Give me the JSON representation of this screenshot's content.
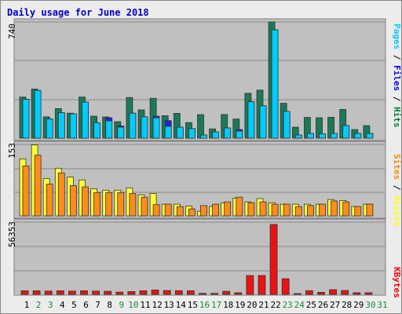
{
  "chart_data": {
    "type": "bar",
    "title": "Daily usage for June 2018",
    "categories": [
      "1",
      "2",
      "3",
      "4",
      "5",
      "6",
      "7",
      "8",
      "9",
      "10",
      "11",
      "12",
      "13",
      "14",
      "15",
      "16",
      "17",
      "18",
      "19",
      "20",
      "21",
      "22",
      "23",
      "24",
      "25",
      "26",
      "27",
      "28",
      "29",
      "30",
      "31"
    ],
    "weekend_days": [
      "2",
      "3",
      "9",
      "10",
      "16",
      "17",
      "23",
      "24",
      "30",
      "31"
    ],
    "panels": [
      {
        "id": "top",
        "max_label": "740",
        "ylim": [
          0,
          740
        ],
        "legend": [
          {
            "text": "Pages",
            "color": "#00ccff"
          },
          {
            "text": " / ",
            "color": "#000000"
          },
          {
            "text": "Files",
            "color": "#0000ff"
          },
          {
            "text": " / ",
            "color": "#000000"
          },
          {
            "text": "Hits",
            "color": "#008040"
          }
        ],
        "series": [
          {
            "name": "Hits",
            "color": "#1b7a55",
            "values": [
              262,
              313,
              136,
              188,
              159,
              262,
              140,
              135,
              105,
              259,
              180,
              254,
              143,
              158,
              99,
              150,
              59,
              151,
              122,
              286,
              306,
              740,
              222,
              70,
              132,
              130,
              133,
              183,
              55,
              80,
              0
            ]
          },
          {
            "name": "Files",
            "color": "#2222dd",
            "values": [
              247,
              304,
              122,
              162,
              155,
              230,
              98,
              130,
              78,
              159,
              136,
              140,
              112,
              70,
              61,
              20,
              40,
              65,
              55,
              232,
              206,
              690,
              170,
              20,
              30,
              28,
              30,
              80,
              30,
              30,
              0
            ]
          },
          {
            "name": "Pages",
            "color": "#00ccff",
            "values": [
              247,
              304,
              122,
              162,
              155,
              230,
              98,
              110,
              70,
              159,
              136,
              130,
              75,
              70,
              61,
              20,
              40,
              65,
              45,
              232,
              206,
              690,
              170,
              20,
              30,
              28,
              30,
              80,
              30,
              30,
              0
            ]
          }
        ]
      },
      {
        "id": "middle",
        "max_label": "153",
        "ylim": [
          0,
          153
        ],
        "legend": [
          {
            "text": "Sites",
            "color": "#ff8800"
          },
          {
            "text": " / ",
            "color": "#000000"
          },
          {
            "text": "Visits",
            "color": "#ffff00"
          }
        ],
        "series": [
          {
            "name": "Visits",
            "color": "#ffff33",
            "values": [
              122,
              152,
              80,
              102,
              83,
              77,
              58,
              55,
              55,
              60,
              45,
              48,
              25,
              25,
              21,
              10,
              20,
              28,
              38,
              30,
              37,
              28,
              25,
              25,
              25,
              25,
              35,
              33,
              20,
              25,
              0
            ]
          },
          {
            "name": "Sites",
            "color": "#ff8c1a",
            "values": [
              107,
              130,
              68,
              92,
              65,
              62,
              50,
              50,
              50,
              48,
              40,
              24,
              25,
              20,
              15,
              22,
              25,
              30,
              40,
              28,
              30,
              25,
              25,
              20,
              22,
              25,
              32,
              30,
              20,
              25,
              0
            ]
          }
        ]
      },
      {
        "id": "bottom",
        "max_label": "56353",
        "ylim": [
          0,
          56353
        ],
        "legend": [
          {
            "text": "KBytes",
            "color": "#ff0000"
          }
        ],
        "series": [
          {
            "name": "KBytes",
            "color": "#ee1111",
            "values": [
              2800,
              2800,
              2600,
              2800,
              2600,
              2800,
              2600,
              2400,
              1800,
              2200,
              2800,
              3400,
              3000,
              2900,
              2800,
              800,
              800,
              2400,
              1300,
              14700,
              14700,
              54500,
              12200,
              500,
              2900,
              1600,
              3700,
              3000,
              1300,
              1300,
              0
            ]
          }
        ]
      }
    ]
  }
}
